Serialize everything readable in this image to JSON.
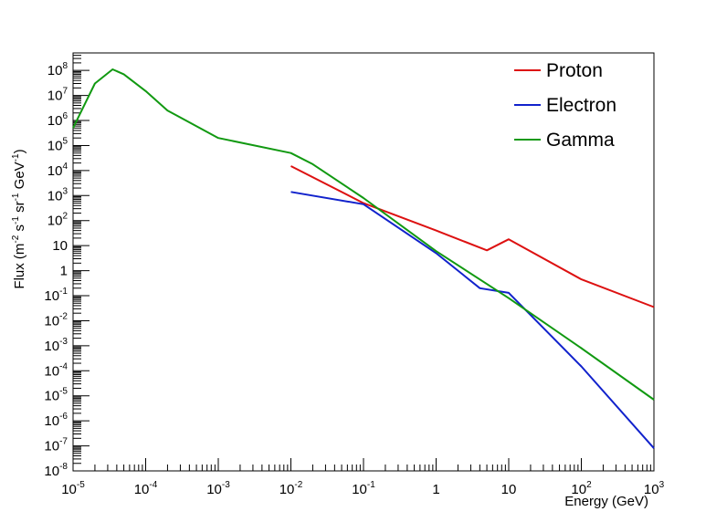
{
  "chart_data": {
    "type": "line",
    "title": "",
    "xlabel": "Energy (GeV)",
    "ylabel_parts": [
      "Flux (m",
      "-2",
      " s",
      "-1",
      " sr",
      "-1",
      " GeV",
      "-1",
      ")"
    ],
    "xscale": "log",
    "yscale": "log",
    "xlim": [
      1e-05,
      1000
    ],
    "ylim": [
      1e-08,
      500000000.0
    ],
    "grid": false,
    "legend_position": "top-right",
    "x_ticks": [
      {
        "base": "10",
        "exp": "-5",
        "value": 1e-05
      },
      {
        "base": "10",
        "exp": "-4",
        "value": 0.0001
      },
      {
        "base": "10",
        "exp": "-3",
        "value": 0.001
      },
      {
        "base": "10",
        "exp": "-2",
        "value": 0.01
      },
      {
        "base": "10",
        "exp": "-1",
        "value": 0.1
      },
      {
        "base": "1",
        "exp": "",
        "value": 1
      },
      {
        "base": "10",
        "exp": "",
        "value": 10
      },
      {
        "base": "10",
        "exp": "2",
        "value": 100
      },
      {
        "base": "10",
        "exp": "3",
        "value": 1000
      }
    ],
    "y_ticks": [
      {
        "base": "10",
        "exp": "-8",
        "value": 1e-08
      },
      {
        "base": "10",
        "exp": "-7",
        "value": 1e-07
      },
      {
        "base": "10",
        "exp": "-6",
        "value": 1e-06
      },
      {
        "base": "10",
        "exp": "-5",
        "value": 1e-05
      },
      {
        "base": "10",
        "exp": "-4",
        "value": 0.0001
      },
      {
        "base": "10",
        "exp": "-3",
        "value": 0.001
      },
      {
        "base": "10",
        "exp": "-2",
        "value": 0.01
      },
      {
        "base": "10",
        "exp": "-1",
        "value": 0.1
      },
      {
        "base": "1",
        "exp": "",
        "value": 1
      },
      {
        "base": "10",
        "exp": "",
        "value": 10
      },
      {
        "base": "10",
        "exp": "2",
        "value": 100
      },
      {
        "base": "10",
        "exp": "3",
        "value": 1000
      },
      {
        "base": "10",
        "exp": "4",
        "value": 10000
      },
      {
        "base": "10",
        "exp": "5",
        "value": 100000
      },
      {
        "base": "10",
        "exp": "6",
        "value": 1000000
      },
      {
        "base": "10",
        "exp": "7",
        "value": 10000000
      },
      {
        "base": "10",
        "exp": "8",
        "value": 100000000
      }
    ],
    "series": [
      {
        "name": "Proton",
        "color": "#dd1111",
        "points": [
          [
            0.01,
            15000
          ],
          [
            0.1,
            500
          ],
          [
            1,
            40
          ],
          [
            5,
            6.5
          ],
          [
            10,
            18
          ],
          [
            100,
            0.45
          ],
          [
            1000,
            0.035
          ]
        ]
      },
      {
        "name": "Electron",
        "color": "#1122cc",
        "points": [
          [
            0.01,
            1400
          ],
          [
            0.1,
            450
          ],
          [
            1,
            5
          ],
          [
            4,
            0.2
          ],
          [
            10,
            0.13
          ],
          [
            100,
            0.00015
          ],
          [
            1000,
            8e-08
          ]
        ]
      },
      {
        "name": "Gamma",
        "color": "#119911",
        "points": [
          [
            1e-05,
            500000
          ],
          [
            2e-05,
            30000000
          ],
          [
            3.5e-05,
            110000000
          ],
          [
            5e-05,
            70000000
          ],
          [
            0.0001,
            15000000
          ],
          [
            0.0002,
            2500000
          ],
          [
            0.001,
            200000
          ],
          [
            0.01,
            50000
          ],
          [
            0.02,
            18000
          ],
          [
            0.1,
            800
          ],
          [
            1,
            6
          ],
          [
            10,
            0.08
          ],
          [
            100,
            0.0008
          ],
          [
            1000,
            7e-06
          ]
        ]
      }
    ]
  }
}
